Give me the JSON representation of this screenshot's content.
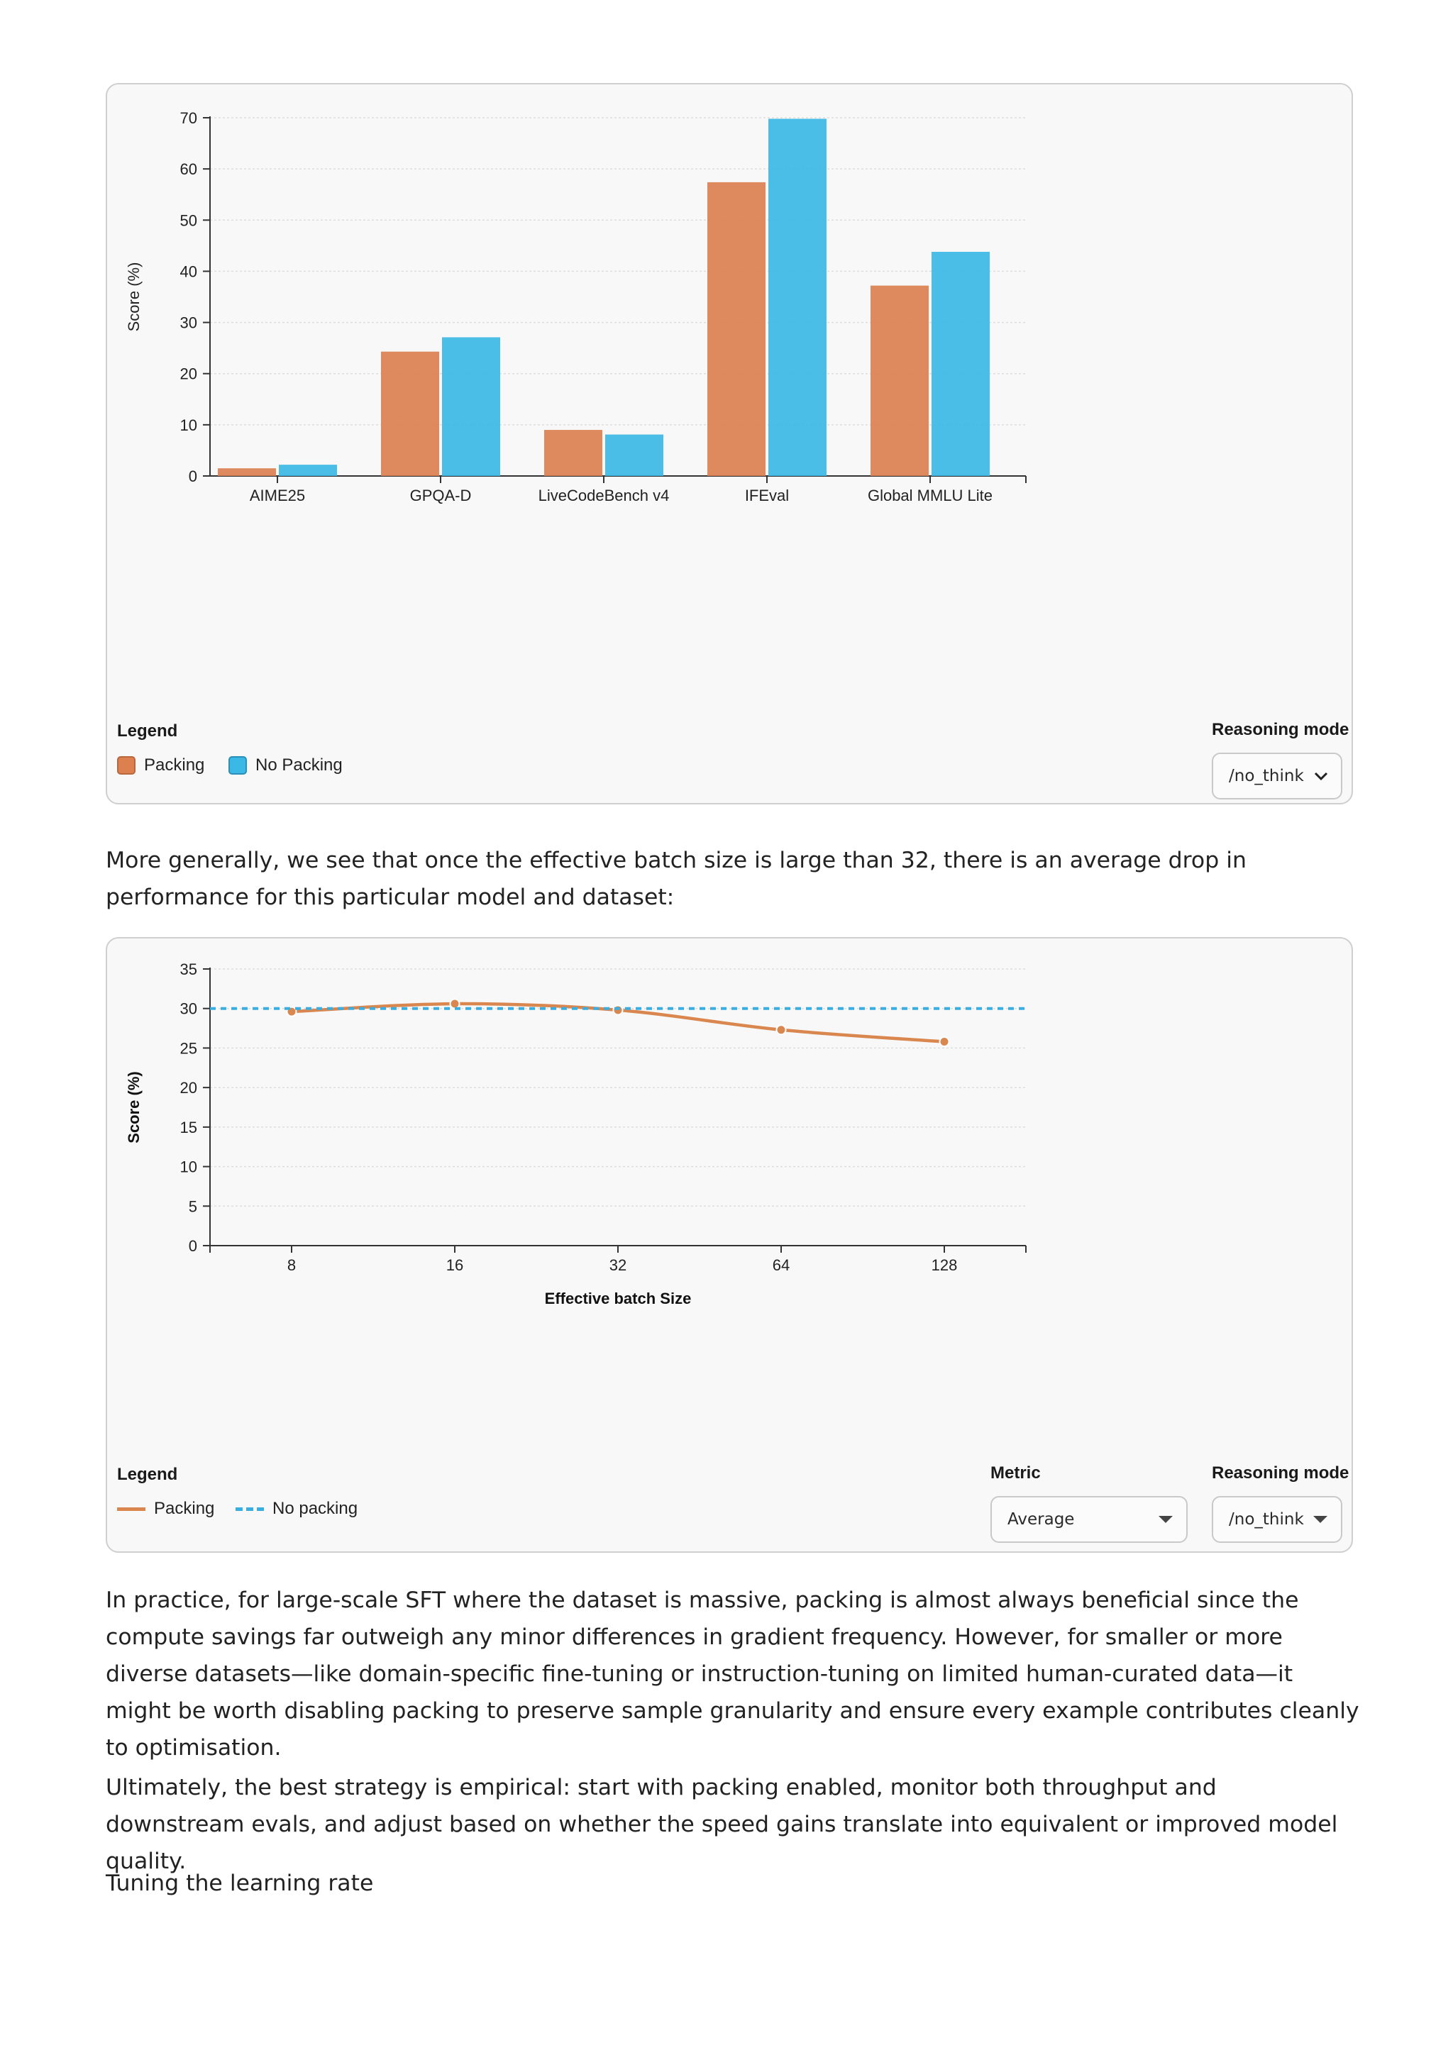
{
  "chart1": {
    "chart_data": {
      "type": "bar",
      "categories": [
        "AIME25",
        "GPQA-D",
        "LiveCodeBench v4",
        "IFEval",
        "Global MMLU Lite"
      ],
      "series": [
        {
          "name": "Packing",
          "values": [
            1.5,
            24.3,
            9.0,
            57.4,
            37.2
          ],
          "color": "#dc8050"
        },
        {
          "name": "No Packing",
          "values": [
            2.2,
            27.1,
            8.1,
            69.8,
            43.8
          ],
          "color": "#3bb8e5"
        }
      ],
      "title": "",
      "xlabel": "",
      "ylabel": "Score (%)",
      "ylim": [
        0,
        70
      ],
      "yticks": [
        0,
        10,
        20,
        30,
        40,
        50,
        60,
        70
      ],
      "grid": true,
      "legend_placement": "bottom-left"
    },
    "legend_title": "Legend",
    "legend_items": [
      {
        "label": "Packing",
        "color": "#dc8050"
      },
      {
        "label": "No Packing",
        "color": "#3bb8e5"
      }
    ],
    "reasoning_label": "Reasoning mode",
    "reasoning_value": "/no_think"
  },
  "paragraph1": "More generally, we see that once the effective batch size is large than 32, there is an average drop in performance for this particular model and dataset:",
  "chart2": {
    "chart_data": {
      "type": "line",
      "x": [
        8,
        16,
        32,
        64,
        128
      ],
      "xscale": "log2",
      "series": [
        {
          "name": "Packing",
          "values": [
            29.6,
            30.6,
            29.8,
            27.3,
            25.8
          ],
          "color": "#d9874f",
          "style": "solid"
        },
        {
          "name": "No packing",
          "values": [
            30.0,
            30.0,
            30.0,
            30.0,
            30.0
          ],
          "color": "#3aaee0",
          "style": "dashed"
        }
      ],
      "title": "",
      "xlabel": "Effective batch Size",
      "ylabel": "Score (%)",
      "ylim": [
        0,
        35
      ],
      "yticks": [
        0,
        5,
        10,
        15,
        20,
        25,
        30,
        35
      ],
      "grid": true,
      "legend_placement": "bottom-left"
    },
    "legend_title": "Legend",
    "legend_items": [
      {
        "label": "Packing",
        "color": "#d9874f",
        "style": "solid"
      },
      {
        "label": "No packing",
        "color": "#3aaee0",
        "style": "dashed"
      }
    ],
    "metric_label": "Metric",
    "metric_value": "Average",
    "reasoning_label": "Reasoning mode",
    "reasoning_value": "/no_think"
  },
  "paragraph2": "In practice, for large-scale SFT where the dataset is massive, packing is almost always beneficial since the compute savings far outweigh any minor differences in gradient frequency. However, for smaller or more diverse datasets—like domain-specific fine-tuning or instruction-tuning on limited human-curated data—it might be worth disabling packing to preserve sample granularity and ensure every example contributes cleanly to optimisation.",
  "paragraph3": "Ultimately, the best strategy is empirical: start with packing enabled, monitor both throughput and downstream evals, and adjust based on whether the speed gains translate into equivalent or improved model quality.",
  "heading": "Tuning the learning rate"
}
